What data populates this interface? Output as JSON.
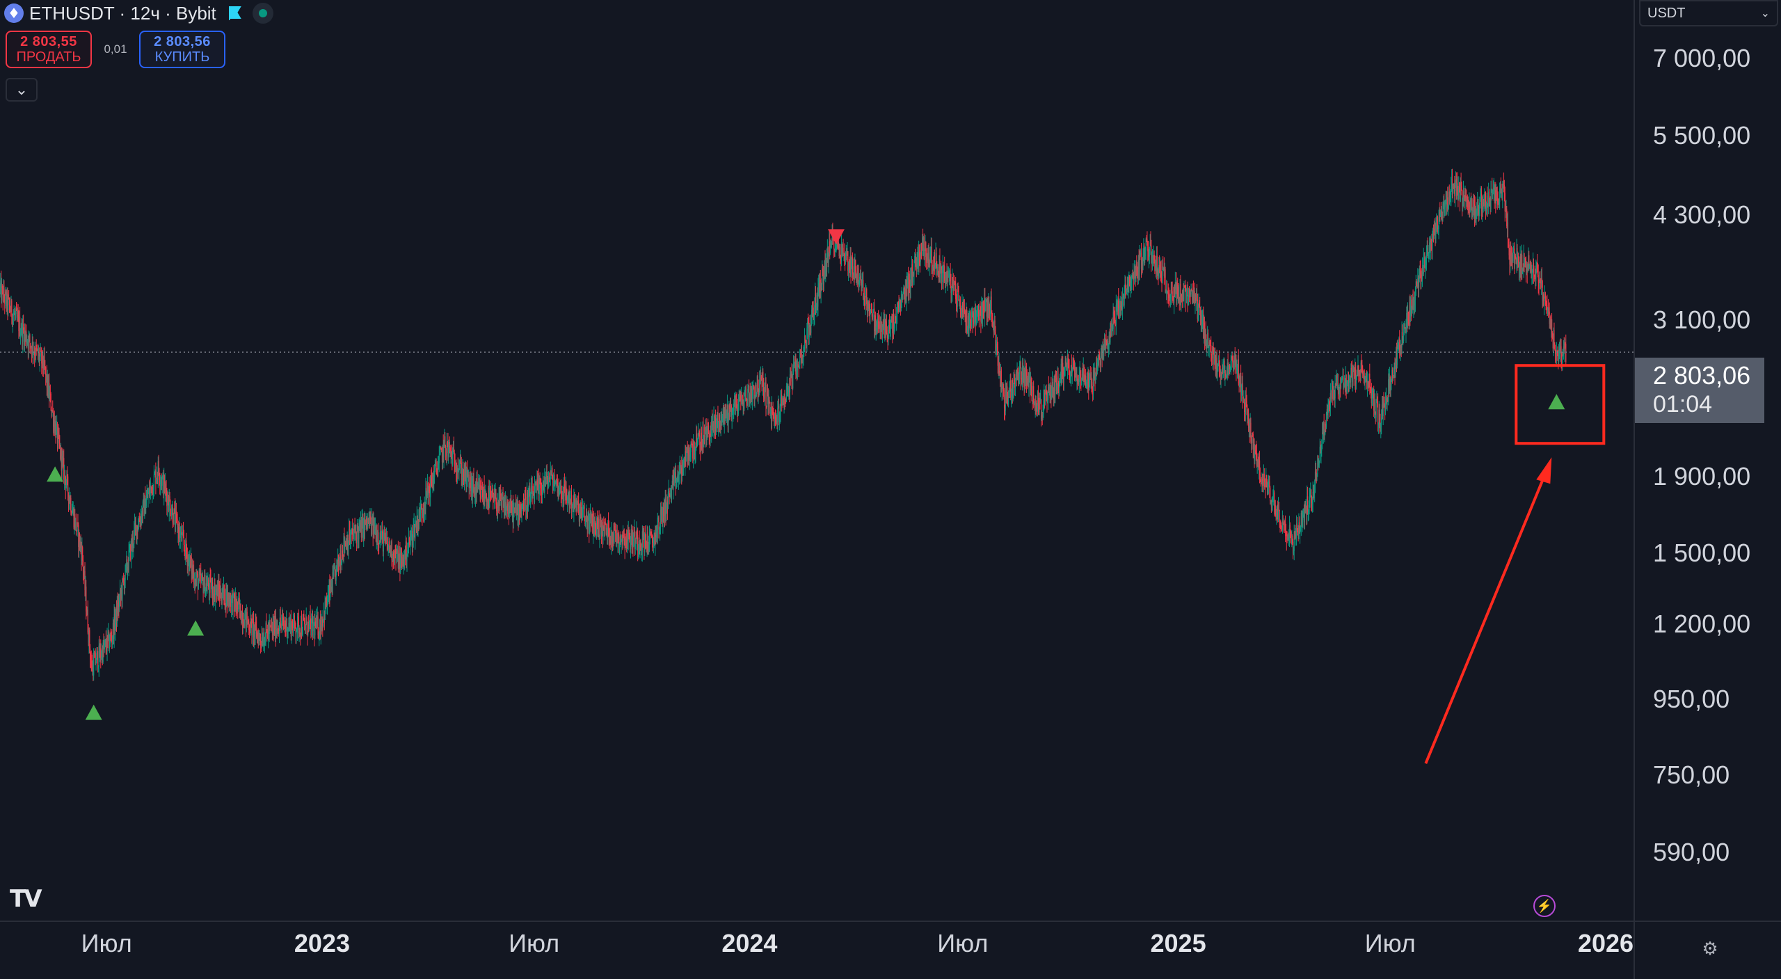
{
  "header": {
    "symbol_line": "ETHUSDT · 12ч · Bybit",
    "coin_icon": "eth-icon",
    "flag_icon": "flag-icon",
    "status_icon": "market-status-dot"
  },
  "trade": {
    "sell_price": "2 803,55",
    "sell_label": "ПРОДАТЬ",
    "spread": "0,01",
    "buy_price": "2 803,56",
    "buy_label": "КУПИТЬ",
    "sell_color": "#f23645",
    "buy_color": "#2962ff"
  },
  "collapse_icon": "chevron-down-icon",
  "price_scale": {
    "currency": "USDT",
    "labels": [
      "7 000,00",
      "5 500,00",
      "4 300,00",
      "3 100,00",
      "1 900,00",
      "1 500,00",
      "1 200,00",
      "950,00",
      "750,00",
      "590,00"
    ],
    "current_price": "2 803,06",
    "countdown": "01:04"
  },
  "time_axis": {
    "labels": [
      "Июл",
      "2023",
      "Июл",
      "2024",
      "Июл",
      "2025",
      "Июл",
      "2026"
    ]
  },
  "footer": {
    "logo": "TV",
    "bolt_icon": "lightning-icon",
    "gear_icon": "gear-icon"
  },
  "colors": {
    "background": "#131722",
    "up_candle": "#089981",
    "down_candle": "#f23645",
    "buy_marker": "#4caf50",
    "sell_marker": "#f23645",
    "annotation": "#ff2a1f"
  },
  "chart_data": {
    "type": "candlestick",
    "symbol": "ETHUSDT",
    "interval": "12ч",
    "exchange": "Bybit",
    "y_scale": "log",
    "ylim": [
      480,
      8400
    ],
    "xlim": [
      "2022-04-01",
      "2026-01-20"
    ],
    "series": [
      {
        "x": [
          "2022-04-01",
          "2022-04-20",
          "2022-05-08",
          "2022-05-25",
          "2022-06-10",
          "2022-06-18",
          "2022-07-05",
          "2022-07-25",
          "2022-08-14",
          "2022-09-01",
          "2022-09-15",
          "2022-10-15",
          "2022-11-09",
          "2022-11-25",
          "2022-12-30",
          "2023-01-20",
          "2023-02-10",
          "2023-03-10",
          "2023-04-16",
          "2023-05-10",
          "2023-06-15",
          "2023-07-15",
          "2023-08-17",
          "2023-09-10",
          "2023-10-10",
          "2023-10-25",
          "2023-11-10",
          "2023-12-10",
          "2024-01-12",
          "2024-01-22",
          "2024-02-15",
          "2024-03-12",
          "2024-04-01",
          "2024-04-18",
          "2024-05-01",
          "2024-05-27",
          "2024-06-20",
          "2024-07-05",
          "2024-07-25",
          "2024-08-05",
          "2024-08-20",
          "2024-09-06",
          "2024-09-28",
          "2024-10-20",
          "2024-11-10",
          "2024-12-06",
          "2024-12-25",
          "2025-01-15",
          "2025-02-03",
          "2025-02-20",
          "2025-03-10",
          "2025-04-09",
          "2025-04-25",
          "2025-05-12",
          "2025-06-10",
          "2025-06-22",
          "2025-07-15",
          "2025-08-10",
          "2025-08-24",
          "2025-09-10",
          "2025-10-06",
          "2025-10-11",
          "2025-11-04",
          "2025-11-21",
          "2025-11-28"
        ],
        "close": [
          3400,
          3000,
          2700,
          1950,
          1500,
          1050,
          1150,
          1600,
          1950,
          1600,
          1380,
          1300,
          1150,
          1200,
          1190,
          1550,
          1650,
          1450,
          2100,
          1830,
          1700,
          1900,
          1650,
          1580,
          1550,
          1800,
          2050,
          2300,
          2550,
          2250,
          2800,
          4000,
          3600,
          3050,
          3000,
          3900,
          3500,
          3100,
          3250,
          2400,
          2650,
          2350,
          2700,
          2550,
          3200,
          3900,
          3400,
          3300,
          2650,
          2700,
          1950,
          1550,
          1800,
          2500,
          2650,
          2250,
          3100,
          4200,
          4700,
          4400,
          4600,
          3800,
          3600,
          2750,
          2803.06
        ]
      }
    ],
    "signals": [
      {
        "type": "buy",
        "x": "2022-05-18"
      },
      {
        "type": "buy",
        "x": "2022-06-20"
      },
      {
        "type": "buy",
        "x": "2022-09-15"
      },
      {
        "type": "sell",
        "x": "2024-03-15"
      },
      {
        "type": "buy",
        "x": "2025-11-20"
      }
    ],
    "current_price": 2803.06,
    "yticks": [
      7000,
      5500,
      4300,
      3100,
      1900,
      1500,
      1200,
      950,
      750,
      590
    ],
    "xticks": [
      "Июл",
      "2023",
      "Июл",
      "2024",
      "Июл",
      "2025",
      "Июл",
      "2026"
    ],
    "annotations": [
      {
        "type": "rectangle",
        "around": "latest buy signal"
      },
      {
        "type": "arrow",
        "points_to": "latest buy signal"
      }
    ],
    "grid": false,
    "legend": "none"
  }
}
